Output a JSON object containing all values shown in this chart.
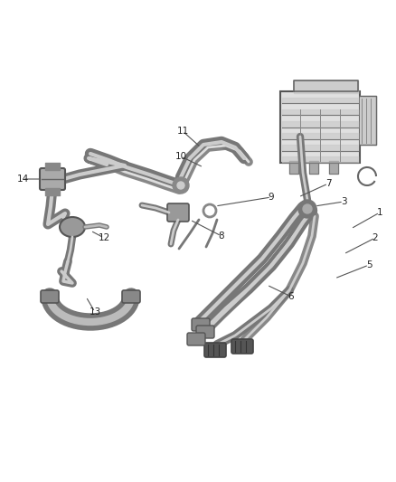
{
  "bg_color": "#ffffff",
  "line_color": "#444444",
  "fig_width": 4.38,
  "fig_height": 5.33,
  "dpi": 100,
  "label_fontsize": 7.5,
  "tube_outer_color": "#666666",
  "tube_mid_color": "#aaaaaa",
  "tube_inner_color": "#dddddd"
}
